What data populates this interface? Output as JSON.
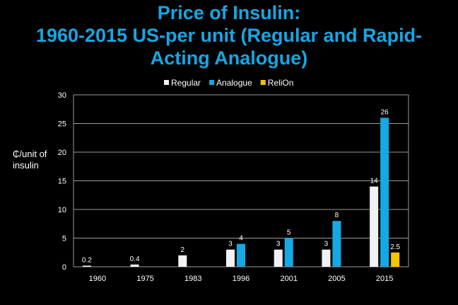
{
  "chart_data": {
    "type": "bar",
    "title_lines": [
      "Price of Insulin:",
      "1960-2015 US-per unit (Regular and Rapid-",
      "Acting Analogue)"
    ],
    "xlabel": "",
    "ylabel": "₵/unit of insulin",
    "ylabel_lines": [
      "₵/unit of",
      "insulin"
    ],
    "categories": [
      "1960",
      "1975",
      "1983",
      "1996",
      "2001",
      "2005",
      "2015"
    ],
    "ylim": [
      0,
      30
    ],
    "yticks": [
      "0",
      "5",
      "10",
      "15",
      "20",
      "25",
      "30"
    ],
    "grid": true,
    "legend_position": "top",
    "series": [
      {
        "name": "Regular",
        "color": "#f2f2f4",
        "values": [
          0.2,
          0.4,
          2,
          3,
          3,
          3,
          14
        ],
        "labels": [
          "0.2",
          "0.4",
          "2",
          "3",
          "3",
          "3",
          "14"
        ]
      },
      {
        "name": "Analogue",
        "color": "#14a8e4",
        "values": [
          null,
          null,
          null,
          4,
          5,
          8,
          26
        ],
        "labels": [
          "",
          "",
          "",
          "4",
          "5",
          "8",
          "26"
        ]
      },
      {
        "name": "ReliOn",
        "color": "#f5c400",
        "values": [
          null,
          null,
          null,
          null,
          null,
          null,
          2.5
        ],
        "labels": [
          "",
          "",
          "",
          "",
          "",
          "",
          "2.5"
        ]
      }
    ]
  }
}
